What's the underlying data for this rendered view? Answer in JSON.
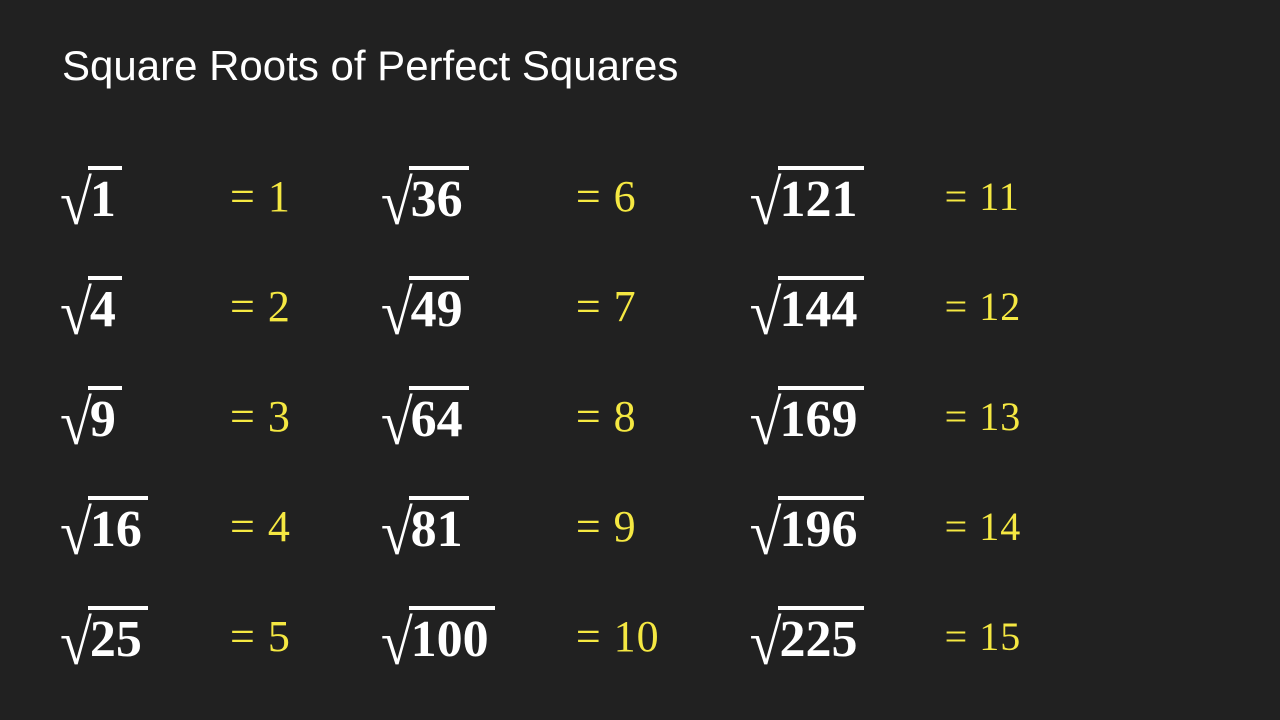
{
  "title": "Square Roots of Perfect Squares",
  "colors": {
    "background": "#212121",
    "text": "#ffffff",
    "answer": "#f5e842"
  },
  "columns": [
    {
      "entries": [
        {
          "radicand": "1",
          "answer": "= 1"
        },
        {
          "radicand": "4",
          "answer": "= 2"
        },
        {
          "radicand": "9",
          "answer": "= 3"
        },
        {
          "radicand": "16",
          "answer": "= 4"
        },
        {
          "radicand": "25",
          "answer": "= 5"
        }
      ]
    },
    {
      "entries": [
        {
          "radicand": "36",
          "answer": "= 6"
        },
        {
          "radicand": "49",
          "answer": "= 7"
        },
        {
          "radicand": "64",
          "answer": "= 8"
        },
        {
          "radicand": "81",
          "answer": "= 9"
        },
        {
          "radicand": "100",
          "answer": "= 10"
        }
      ]
    },
    {
      "entries": [
        {
          "radicand": "121",
          "answer": "= 11"
        },
        {
          "radicand": "144",
          "answer": "= 12"
        },
        {
          "radicand": "169",
          "answer": "= 13"
        },
        {
          "radicand": "196",
          "answer": "= 14"
        },
        {
          "radicand": "225",
          "answer": "= 15"
        }
      ]
    }
  ]
}
